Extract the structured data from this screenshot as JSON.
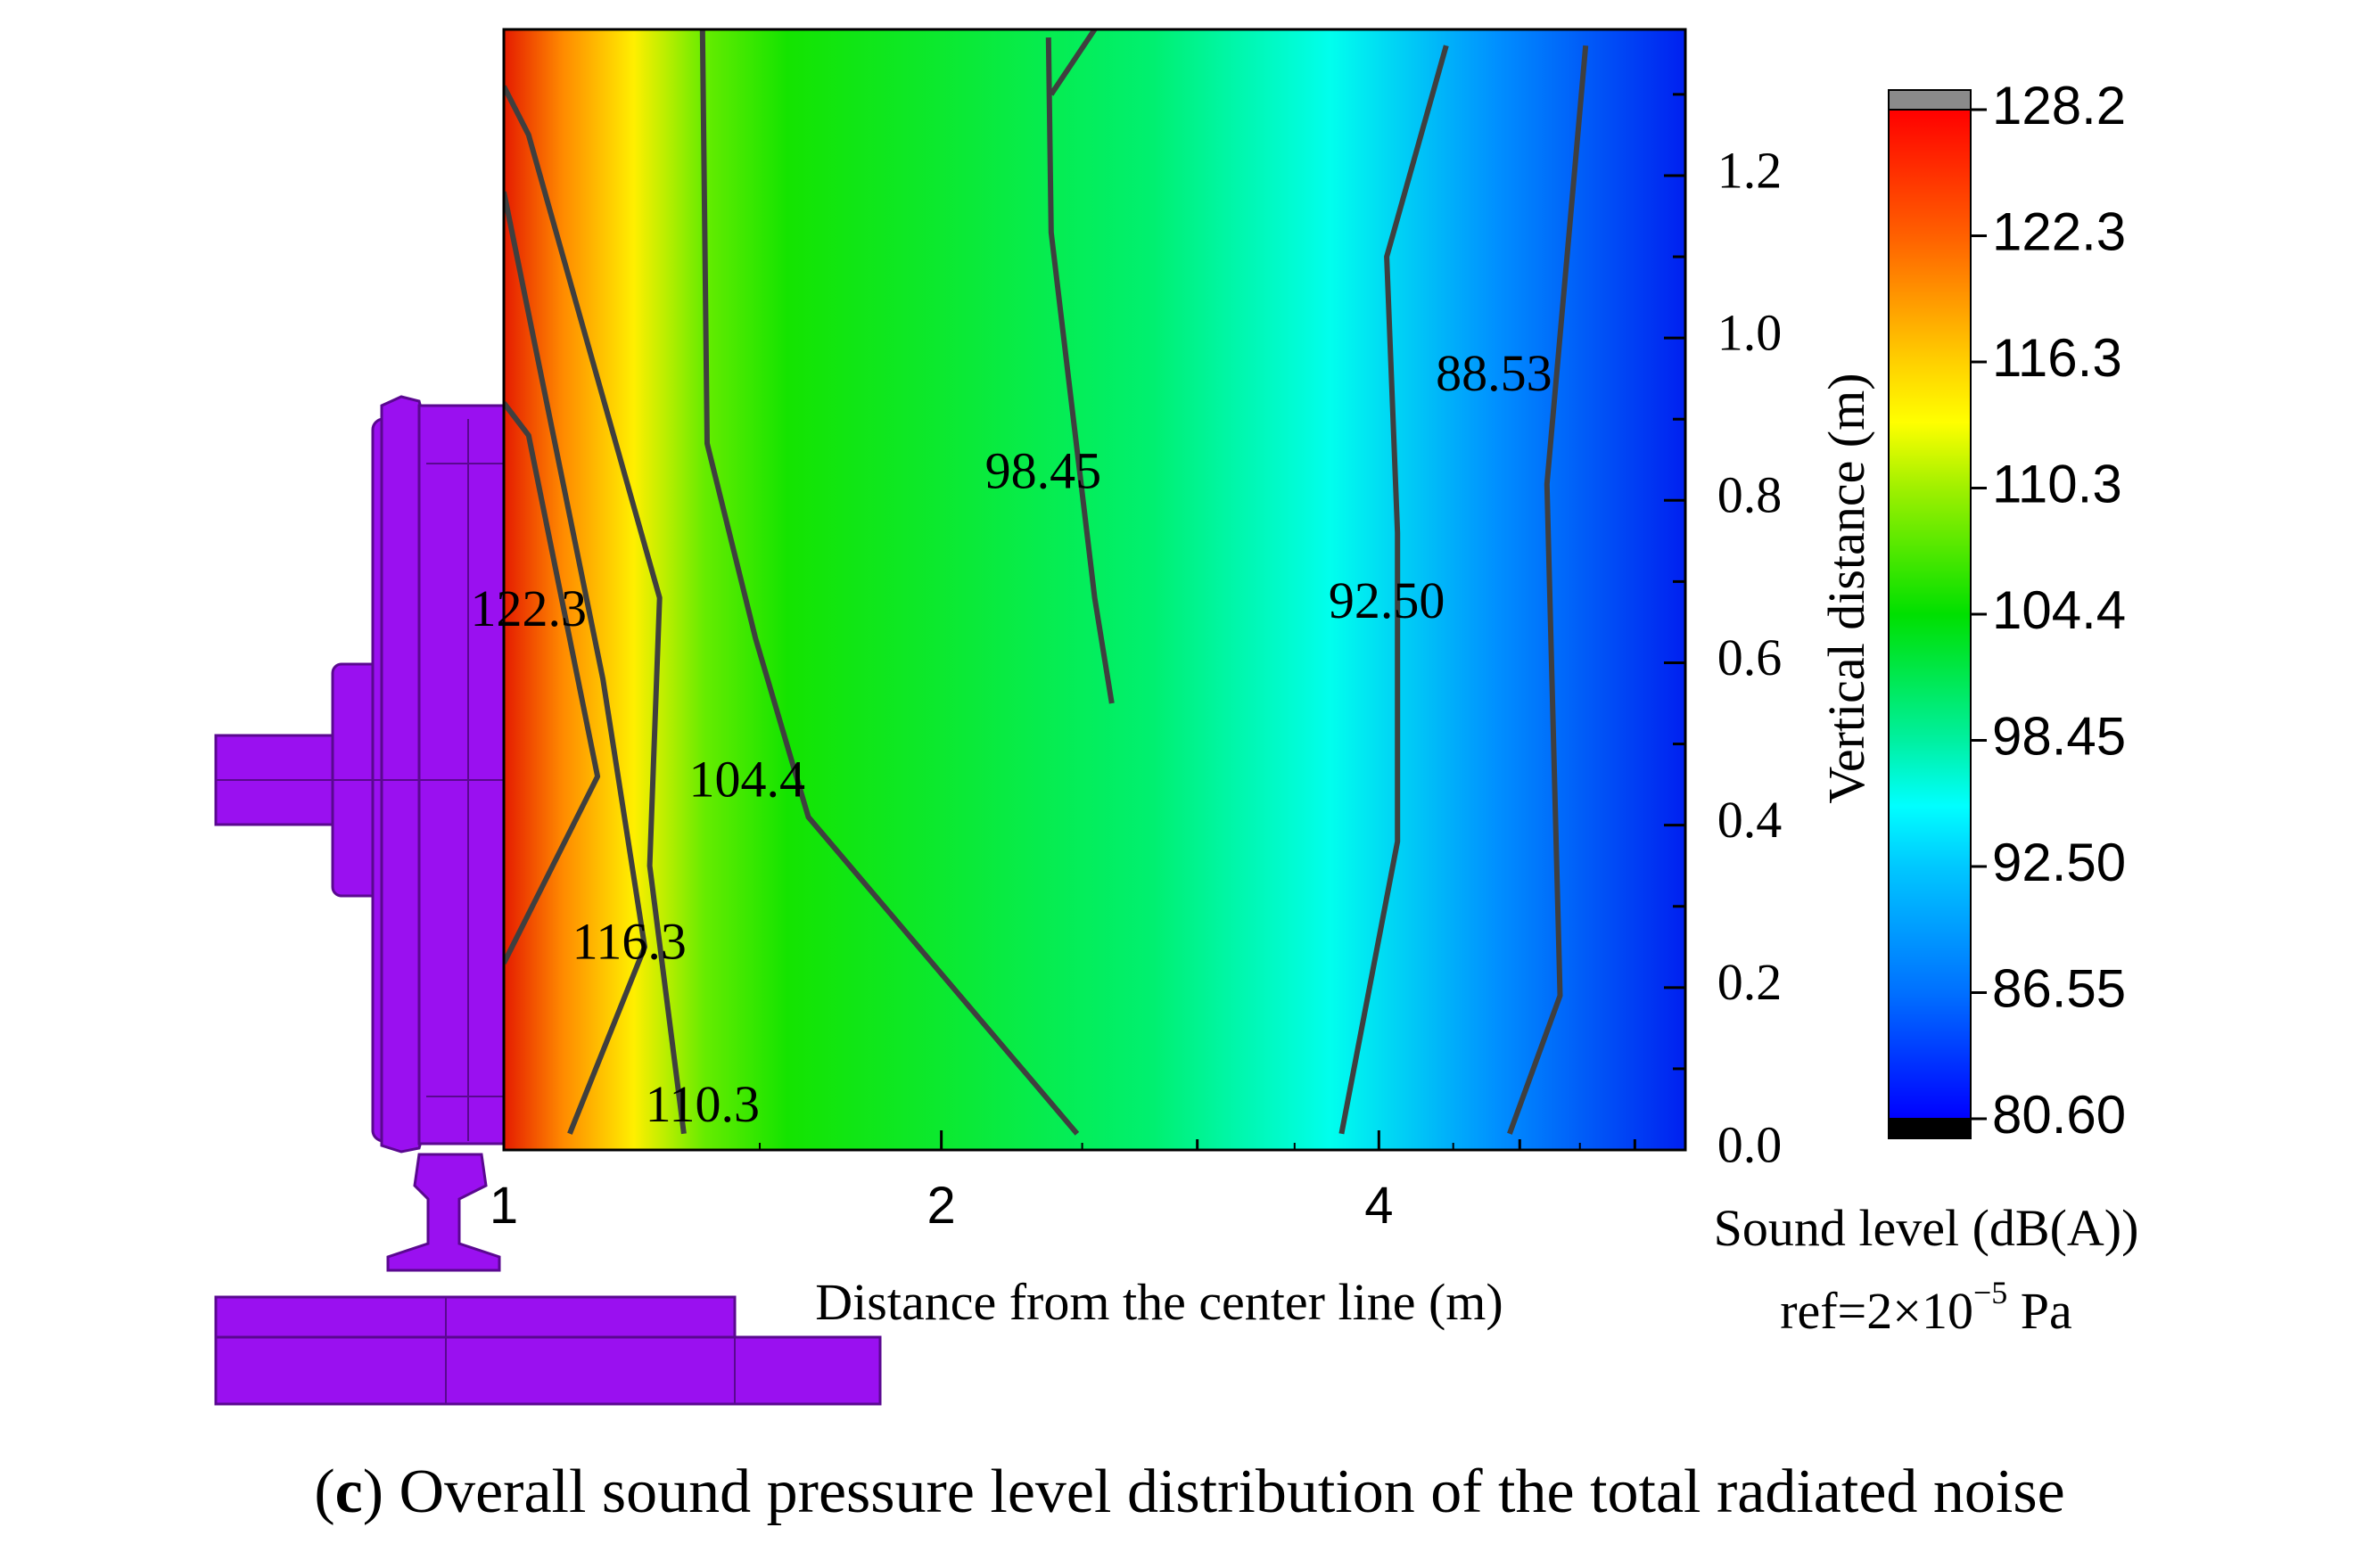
{
  "chart_data": {
    "type": "heatmap",
    "subtype": "contour",
    "title": "",
    "xlabel": "Distance from the center line (m)",
    "ylabel": "Vertical distance (m)",
    "xscale": "log",
    "xlim": [
      1,
      6.5
    ],
    "ylim": [
      0.0,
      1.38
    ],
    "x_ticks": [
      {
        "value": 1,
        "label": "1"
      },
      {
        "value": 2,
        "label": "2"
      },
      {
        "value": 4,
        "label": "4"
      }
    ],
    "y_ticks": [
      {
        "value": 0.0,
        "label": "0.0"
      },
      {
        "value": 0.2,
        "label": "0.2"
      },
      {
        "value": 0.4,
        "label": "0.4"
      },
      {
        "value": 0.6,
        "label": "0.6"
      },
      {
        "value": 0.8,
        "label": "0.8"
      },
      {
        "value": 1.0,
        "label": "1.0"
      },
      {
        "value": 1.2,
        "label": "1.2"
      }
    ],
    "contour_lines": [
      {
        "level": "122.3",
        "points": [
          [
            1,
            0.23
          ],
          [
            1.16,
            0.46
          ],
          [
            1.04,
            0.88
          ],
          [
            1,
            0.92
          ]
        ]
      },
      {
        "level": "116.3",
        "points": [
          [
            1.11,
            0.02
          ],
          [
            1.25,
            0.25
          ],
          [
            1.17,
            0.58
          ],
          [
            1,
            1.18
          ]
        ]
      },
      {
        "level": "110.3",
        "points": [
          [
            1.33,
            0.02
          ],
          [
            1.26,
            0.35
          ],
          [
            1.28,
            0.68
          ],
          [
            1.04,
            1.25
          ],
          [
            1,
            1.31
          ]
        ]
      },
      {
        "level": "104.4",
        "points": [
          [
            2.48,
            0.02
          ],
          [
            1.62,
            0.41
          ],
          [
            1.49,
            0.63
          ],
          [
            1.38,
            0.87
          ],
          [
            1.37,
            1.38
          ]
        ]
      },
      {
        "level": "98.45",
        "points": [
          [
            2.62,
            0.55
          ],
          [
            2.55,
            0.68
          ],
          [
            2.38,
            1.13
          ],
          [
            2.37,
            1.37
          ]
        ]
      },
      {
        "level": "98.45",
        "points": [
          [
            2.38,
            1.3
          ],
          [
            2.55,
            1.38
          ]
        ]
      },
      {
        "level": "92.50",
        "points": [
          [
            3.77,
            0.02
          ],
          [
            4.12,
            0.38
          ],
          [
            4.12,
            0.76
          ],
          [
            4.05,
            1.1
          ],
          [
            4.45,
            1.36
          ]
        ]
      },
      {
        "level": "88.53",
        "points": [
          [
            4.92,
            0.02
          ],
          [
            5.33,
            0.19
          ],
          [
            5.22,
            0.82
          ],
          [
            5.55,
            1.36
          ]
        ]
      }
    ],
    "contour_labels": [
      {
        "text": "122.3",
        "x": 1.04,
        "y": 0.66
      },
      {
        "text": "116.3",
        "x": 1.22,
        "y": 0.25
      },
      {
        "text": "110.3",
        "x": 1.37,
        "y": 0.05
      },
      {
        "text": "104.4",
        "x": 1.47,
        "y": 0.45
      },
      {
        "text": "98.45",
        "x": 2.35,
        "y": 0.83
      },
      {
        "text": "92.50",
        "x": 4.05,
        "y": 0.67
      },
      {
        "text": "88.53",
        "x": 4.8,
        "y": 0.95
      }
    ],
    "colorbar": {
      "title": "Sound level (dB(A))",
      "ref_prefix": "ref=2×10",
      "ref_exponent": "−5",
      "ref_suffix": " Pa",
      "min": 80.6,
      "max": 128.2,
      "tick_labels": [
        "128.2",
        "122.3",
        "116.3",
        "110.3",
        "104.4",
        "98.45",
        "92.50",
        "86.55",
        "80.60"
      ],
      "over_color": "#8a8a8a",
      "under_color": "#000000"
    },
    "caption_letter": "c",
    "caption_text": "Overall sound pressure level distribution of the total radiated noise"
  },
  "colors": {
    "contour_line": "#3f3f3f",
    "wheel_model": "#9a10f0",
    "wheel_edge": "#5a0890"
  }
}
